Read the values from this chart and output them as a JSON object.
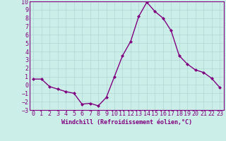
{
  "x": [
    0,
    1,
    2,
    3,
    4,
    5,
    6,
    7,
    8,
    9,
    10,
    11,
    12,
    13,
    14,
    15,
    16,
    17,
    18,
    19,
    20,
    21,
    22,
    23
  ],
  "y": [
    0.7,
    0.7,
    -0.2,
    -0.5,
    -0.8,
    -1.0,
    -2.3,
    -2.2,
    -2.5,
    -1.5,
    1.0,
    3.5,
    5.2,
    8.2,
    9.9,
    8.8,
    8.0,
    6.5,
    3.5,
    2.5,
    1.8,
    1.5,
    0.8,
    -0.3
  ],
  "line_color": "#800080",
  "marker": "D",
  "marker_size": 2.0,
  "line_width": 1.0,
  "background_color": "#cceee8",
  "grid_color": "#b0d8d8",
  "xlabel": "Windchill (Refroidissement éolien,°C)",
  "xlabel_fontsize": 6.0,
  "tick_fontsize": 6.0,
  "ylim": [
    -3,
    10
  ],
  "yticks": [
    -3,
    -2,
    -1,
    0,
    1,
    2,
    3,
    4,
    5,
    6,
    7,
    8,
    9,
    10
  ],
  "xticks": [
    0,
    1,
    2,
    3,
    4,
    5,
    6,
    7,
    8,
    9,
    10,
    11,
    12,
    13,
    14,
    15,
    16,
    17,
    18,
    19,
    20,
    21,
    22,
    23
  ],
  "spine_color": "#800080",
  "text_color": "#800080"
}
